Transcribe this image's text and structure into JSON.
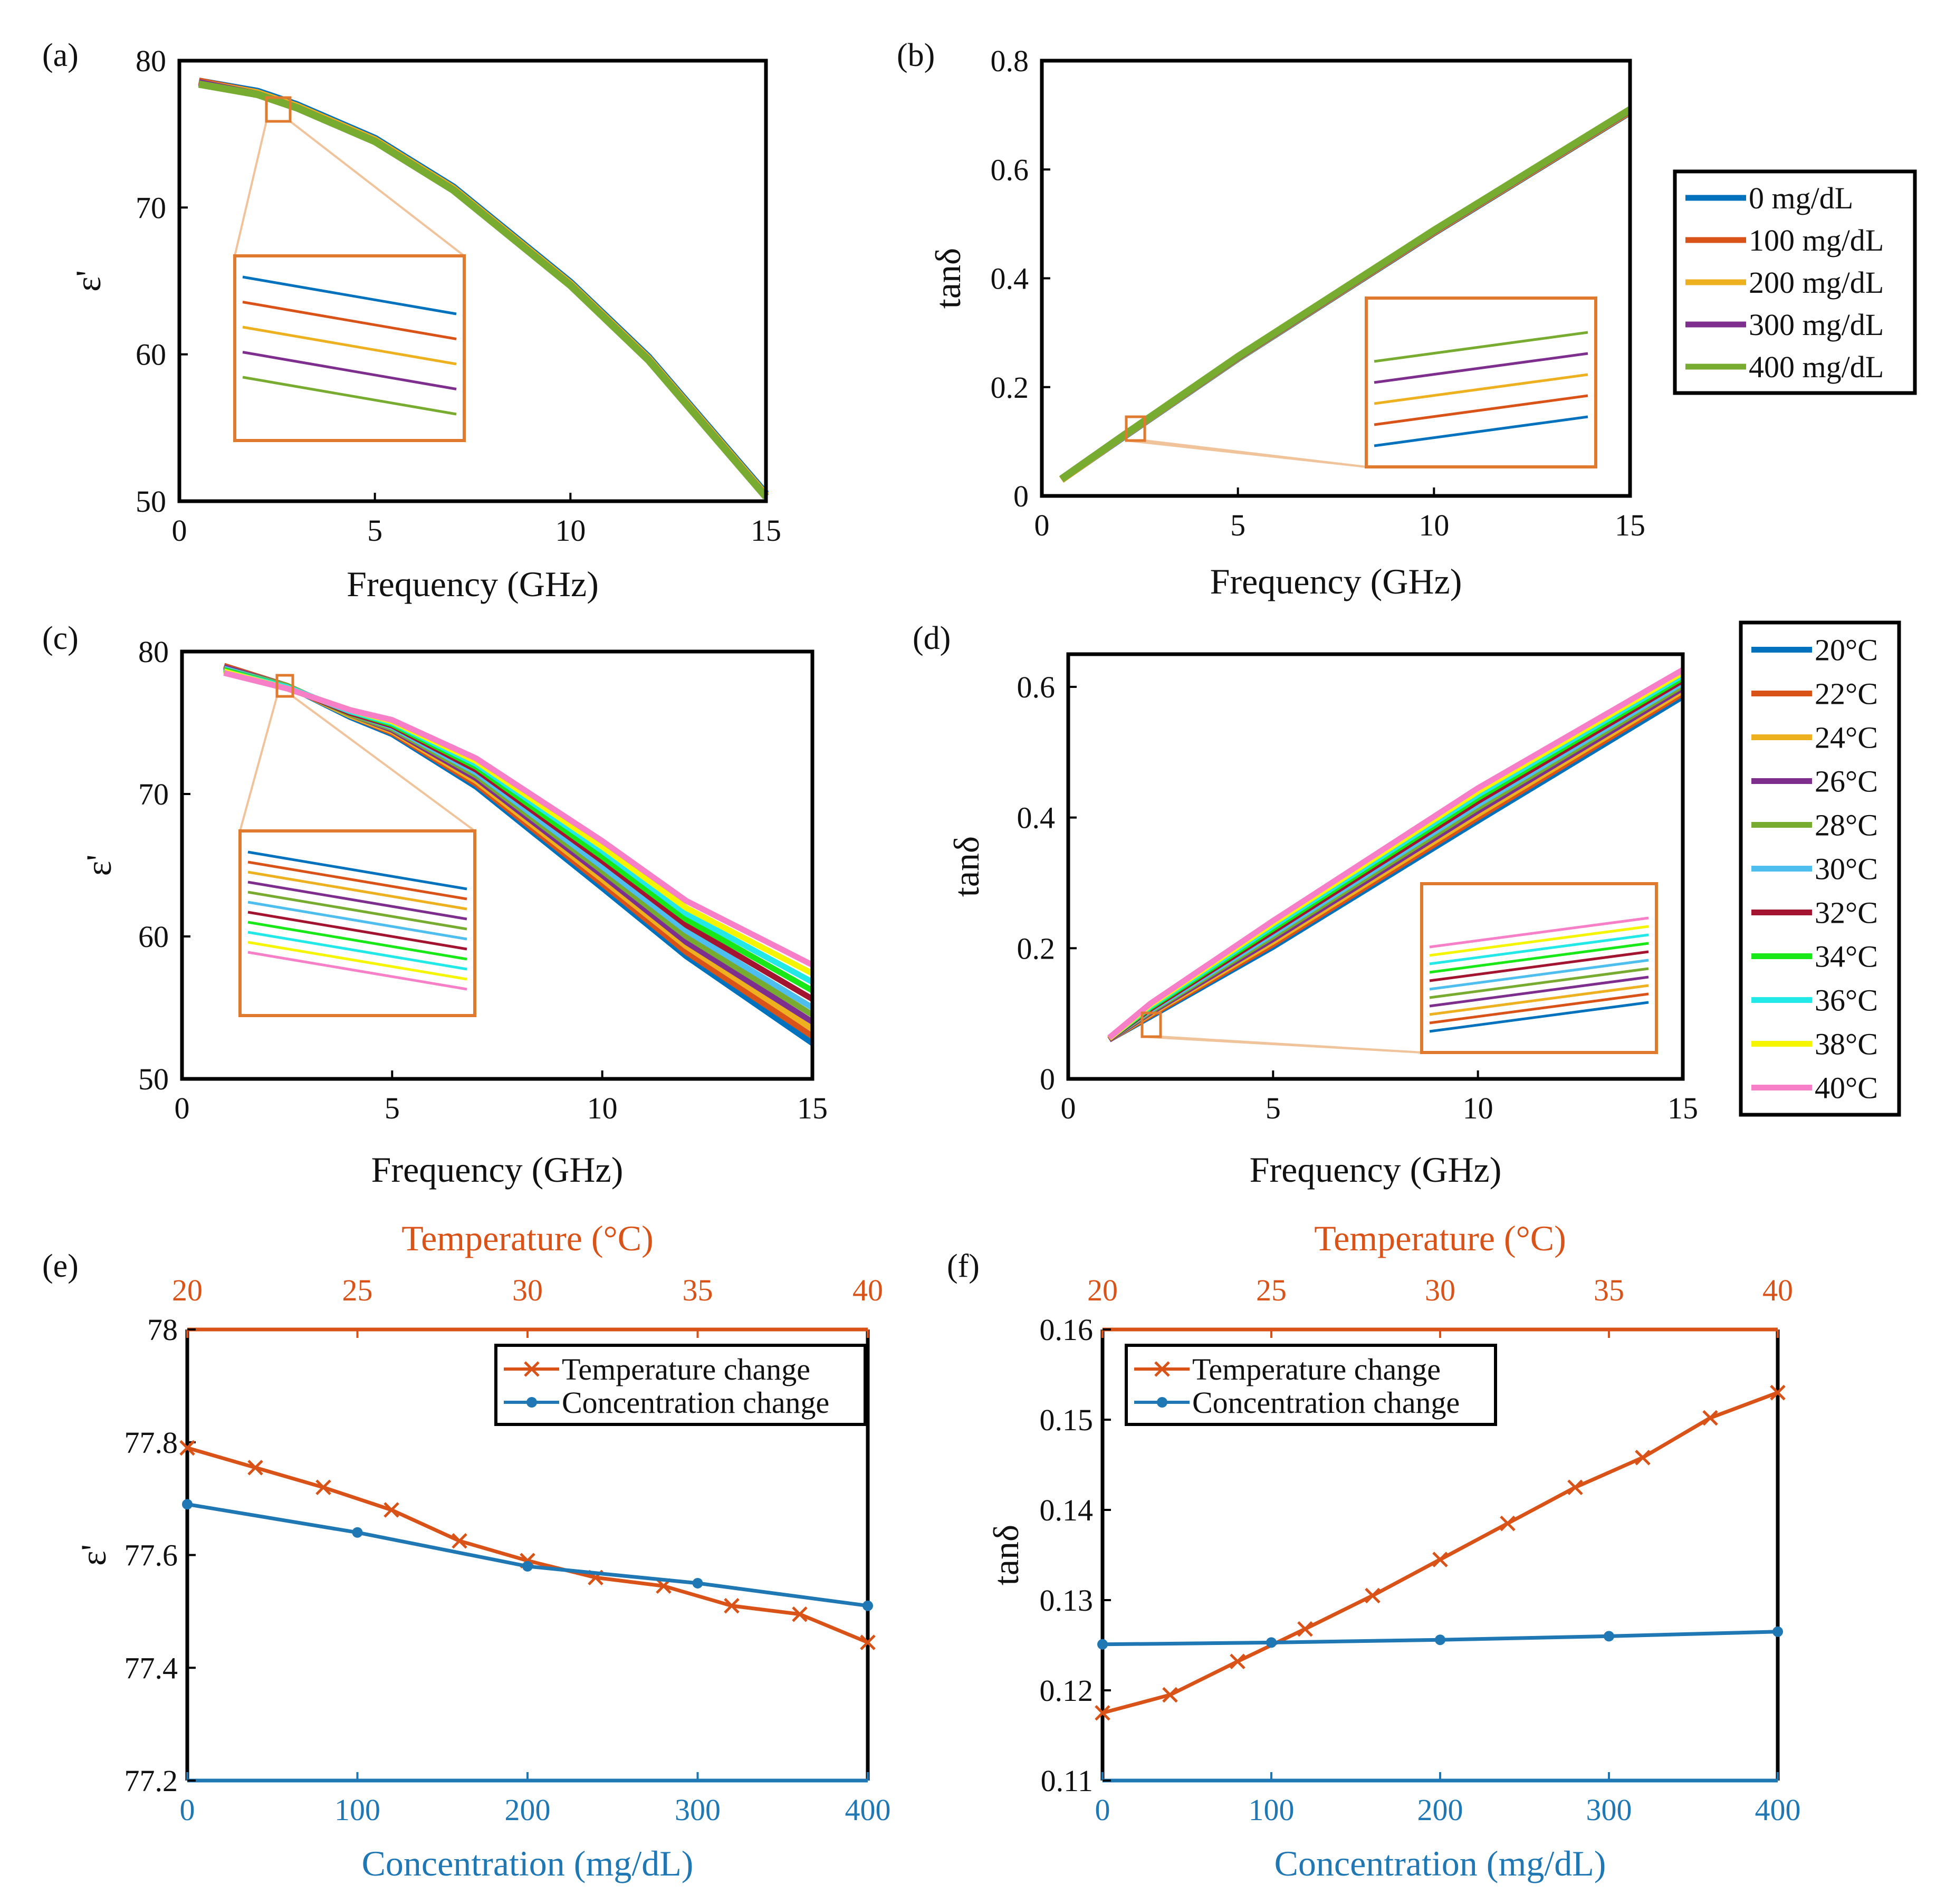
{
  "colors": {
    "conc": [
      "#0072bd",
      "#d95319",
      "#edb120",
      "#7e2f8e",
      "#77ac30"
    ],
    "temp": [
      "#0072bd",
      "#d95319",
      "#edb120",
      "#7e2f8e",
      "#77ac30",
      "#4dbeee",
      "#a2142f",
      "#18e818",
      "#22e8e8",
      "#f5f500",
      "#f77fc8"
    ],
    "temp_axis": "#d95319",
    "conc_axis": "#1f77b4",
    "zoom_box": "#e07a2f"
  },
  "legends": {
    "concentration": [
      "0 mg/dL",
      "100 mg/dL",
      "200 mg/dL",
      "300 mg/dL",
      "400 mg/dL"
    ],
    "temperature": [
      "20°C",
      "22°C",
      "24°C",
      "26°C",
      "28°C",
      "30°C",
      "32°C",
      "34°C",
      "36°C",
      "38°C",
      "40°C"
    ]
  },
  "chart_data": [
    {
      "panel": "(a)",
      "type": "line",
      "xlabel": "Frequency (GHz)",
      "ylabel": "ε'",
      "xlim": [
        0,
        15
      ],
      "ylim": [
        50,
        80
      ],
      "xticks": [
        "0",
        "5",
        "10",
        "15"
      ],
      "yticks": [
        "50",
        "60",
        "70",
        "80"
      ],
      "x": [
        0.5,
        2,
        3,
        5,
        7,
        10,
        12,
        15
      ],
      "series": [
        {
          "name": "0 mg/dL",
          "values": [
            78.6,
            77.9,
            77.0,
            74.7,
            71.4,
            64.9,
            59.8,
            50.5
          ]
        },
        {
          "name": "100 mg/dL",
          "values": [
            78.6,
            77.8,
            76.9,
            74.6,
            71.3,
            64.8,
            59.7,
            50.4
          ]
        },
        {
          "name": "200 mg/dL",
          "values": [
            78.5,
            77.8,
            76.9,
            74.6,
            71.3,
            64.8,
            59.7,
            50.4
          ]
        },
        {
          "name": "300 mg/dL",
          "values": [
            78.5,
            77.7,
            76.8,
            74.5,
            71.2,
            64.7,
            59.6,
            50.3
          ]
        },
        {
          "name": "400 mg/dL",
          "values": [
            78.4,
            77.7,
            76.8,
            74.5,
            71.2,
            64.7,
            59.6,
            50.3
          ]
        }
      ],
      "zoom_at": [
        2.5,
        76.9
      ]
    },
    {
      "panel": "(b)",
      "type": "line",
      "xlabel": "Frequency (GHz)",
      "ylabel": "tanδ",
      "xlim": [
        0,
        15
      ],
      "ylim": [
        0,
        0.8
      ],
      "xticks": [
        "0",
        "5",
        "10",
        "15"
      ],
      "yticks": [
        "0",
        "0.2",
        "0.4",
        "0.6",
        "0.8"
      ],
      "x": [
        0.5,
        2,
        5,
        10,
        15
      ],
      "series": [
        {
          "name": "0 mg/dL",
          "values": [
            0.03,
            0.105,
            0.253,
            0.484,
            0.706
          ]
        },
        {
          "name": "100 mg/dL",
          "values": [
            0.03,
            0.106,
            0.254,
            0.485,
            0.707
          ]
        },
        {
          "name": "200 mg/dL",
          "values": [
            0.03,
            0.106,
            0.254,
            0.486,
            0.708
          ]
        },
        {
          "name": "300 mg/dL",
          "values": [
            0.031,
            0.107,
            0.255,
            0.487,
            0.709
          ]
        },
        {
          "name": "400 mg/dL",
          "values": [
            0.031,
            0.107,
            0.256,
            0.488,
            0.71
          ]
        }
      ],
      "zoom_at": [
        2.4,
        0.12
      ]
    },
    {
      "panel": "(c)",
      "type": "line",
      "xlabel": "Frequency (GHz)",
      "ylabel": "ε'",
      "xlim": [
        0,
        15
      ],
      "ylim": [
        50,
        80
      ],
      "xticks": [
        "0",
        "5",
        "10",
        "15"
      ],
      "yticks": [
        "50",
        "60",
        "70",
        "80"
      ],
      "x": [
        1,
        2.5,
        4,
        5,
        7,
        10,
        12,
        15
      ],
      "series": [
        {
          "name": "20°C",
          "values": [
            79.0,
            77.6,
            75.4,
            74.2,
            70.5,
            63.4,
            58.6,
            52.5
          ]
        },
        {
          "name": "22°C",
          "values": [
            79.0,
            77.6,
            75.5,
            74.3,
            70.7,
            63.7,
            58.9,
            53.0
          ]
        },
        {
          "name": "24°C",
          "values": [
            78.9,
            77.6,
            75.5,
            74.4,
            70.9,
            64.0,
            59.3,
            53.5
          ]
        },
        {
          "name": "26°C",
          "values": [
            78.9,
            77.6,
            75.6,
            74.5,
            71.1,
            64.3,
            59.6,
            54.0
          ]
        },
        {
          "name": "28°C",
          "values": [
            78.8,
            77.6,
            75.6,
            74.6,
            71.3,
            64.6,
            60.0,
            54.5
          ]
        },
        {
          "name": "30°C",
          "values": [
            78.8,
            77.5,
            75.7,
            74.7,
            71.5,
            64.9,
            60.4,
            55.0
          ]
        },
        {
          "name": "32°C",
          "values": [
            78.7,
            77.5,
            75.7,
            74.8,
            71.7,
            65.3,
            60.8,
            55.6
          ]
        },
        {
          "name": "34°C",
          "values": [
            78.7,
            77.5,
            75.8,
            74.9,
            71.9,
            65.6,
            61.2,
            56.2
          ]
        },
        {
          "name": "36°C",
          "values": [
            78.6,
            77.5,
            75.8,
            75.0,
            72.1,
            66.0,
            61.6,
            56.8
          ]
        },
        {
          "name": "38°C",
          "values": [
            78.6,
            77.4,
            75.9,
            75.1,
            72.3,
            66.3,
            62.0,
            57.4
          ]
        },
        {
          "name": "40°C",
          "values": [
            78.5,
            77.4,
            75.9,
            75.2,
            72.5,
            66.7,
            62.5,
            58.0
          ]
        }
      ],
      "zoom_at": [
        2.4,
        77.5
      ]
    },
    {
      "panel": "(d)",
      "type": "line",
      "xlabel": "Frequency (GHz)",
      "ylabel": "tanδ",
      "xlim": [
        0,
        15
      ],
      "ylim": [
        0,
        0.65
      ],
      "xticks": [
        "0",
        "5",
        "10",
        "15"
      ],
      "yticks": [
        "0",
        "0.2",
        "0.4",
        "0.6"
      ],
      "x": [
        1,
        2,
        5,
        10,
        15
      ],
      "series": [
        {
          "name": "20°C",
          "values": [
            0.06,
            0.095,
            0.202,
            0.395,
            0.585
          ]
        },
        {
          "name": "22°C",
          "values": [
            0.06,
            0.097,
            0.206,
            0.4,
            0.59
          ]
        },
        {
          "name": "24°C",
          "values": [
            0.06,
            0.099,
            0.21,
            0.405,
            0.594
          ]
        },
        {
          "name": "26°C",
          "values": [
            0.06,
            0.101,
            0.214,
            0.41,
            0.598
          ]
        },
        {
          "name": "28°C",
          "values": [
            0.061,
            0.103,
            0.218,
            0.415,
            0.602
          ]
        },
        {
          "name": "30°C",
          "values": [
            0.061,
            0.105,
            0.222,
            0.42,
            0.606
          ]
        },
        {
          "name": "32°C",
          "values": [
            0.061,
            0.107,
            0.226,
            0.425,
            0.61
          ]
        },
        {
          "name": "34°C",
          "values": [
            0.062,
            0.109,
            0.23,
            0.43,
            0.614
          ]
        },
        {
          "name": "36°C",
          "values": [
            0.062,
            0.111,
            0.234,
            0.435,
            0.618
          ]
        },
        {
          "name": "38°C",
          "values": [
            0.062,
            0.113,
            0.238,
            0.44,
            0.622
          ]
        },
        {
          "name": "40°C",
          "values": [
            0.063,
            0.115,
            0.242,
            0.445,
            0.626
          ]
        }
      ],
      "zoom_at": [
        2.1,
        0.09
      ]
    },
    {
      "panel": "(e)",
      "type": "line",
      "top_label": "Temperature (°C)",
      "bottom_label": "Concentration (mg/dL)",
      "ylabel": "ε'",
      "top_lim": [
        20,
        40
      ],
      "bottom_lim": [
        0,
        400
      ],
      "ylim": [
        77.2,
        78
      ],
      "top_ticks": [
        "20",
        "25",
        "30",
        "35",
        "40"
      ],
      "bottom_ticks": [
        "0",
        "100",
        "200",
        "300",
        "400"
      ],
      "yticks": [
        "77.2",
        "77.4",
        "77.6",
        "77.8",
        "78"
      ],
      "legend": [
        "Temperature change",
        "Concentration change"
      ],
      "temperature": {
        "x": [
          20,
          22,
          24,
          26,
          28,
          30,
          32,
          34,
          36,
          38,
          40
        ],
        "values": [
          77.79,
          77.755,
          77.72,
          77.68,
          77.625,
          77.59,
          77.56,
          77.545,
          77.51,
          77.495,
          77.445
        ]
      },
      "concentration": {
        "x": [
          0,
          100,
          200,
          300,
          400
        ],
        "values": [
          77.69,
          77.64,
          77.58,
          77.55,
          77.51
        ]
      }
    },
    {
      "panel": "(f)",
      "type": "line",
      "top_label": "Temperature (°C)",
      "bottom_label": "Concentration (mg/dL)",
      "ylabel": "tanδ",
      "top_lim": [
        20,
        40
      ],
      "bottom_lim": [
        0,
        400
      ],
      "ylim": [
        0.11,
        0.16
      ],
      "top_ticks": [
        "20",
        "25",
        "30",
        "35",
        "40"
      ],
      "bottom_ticks": [
        "0",
        "100",
        "200",
        "300",
        "400"
      ],
      "yticks": [
        "0.11",
        "0.12",
        "0.13",
        "0.14",
        "0.15",
        "0.16"
      ],
      "legend": [
        "Temperature change",
        "Concentration change"
      ],
      "temperature": {
        "x": [
          20,
          22,
          24,
          26,
          28,
          30,
          32,
          34,
          36,
          38,
          40
        ],
        "values": [
          0.1175,
          0.1195,
          0.1232,
          0.1268,
          0.1305,
          0.1345,
          0.1385,
          0.1425,
          0.1458,
          0.1502,
          0.153
        ]
      },
      "concentration": {
        "x": [
          0,
          100,
          200,
          300,
          400
        ],
        "values": [
          0.1251,
          0.1253,
          0.1256,
          0.126,
          0.1265
        ]
      }
    }
  ]
}
